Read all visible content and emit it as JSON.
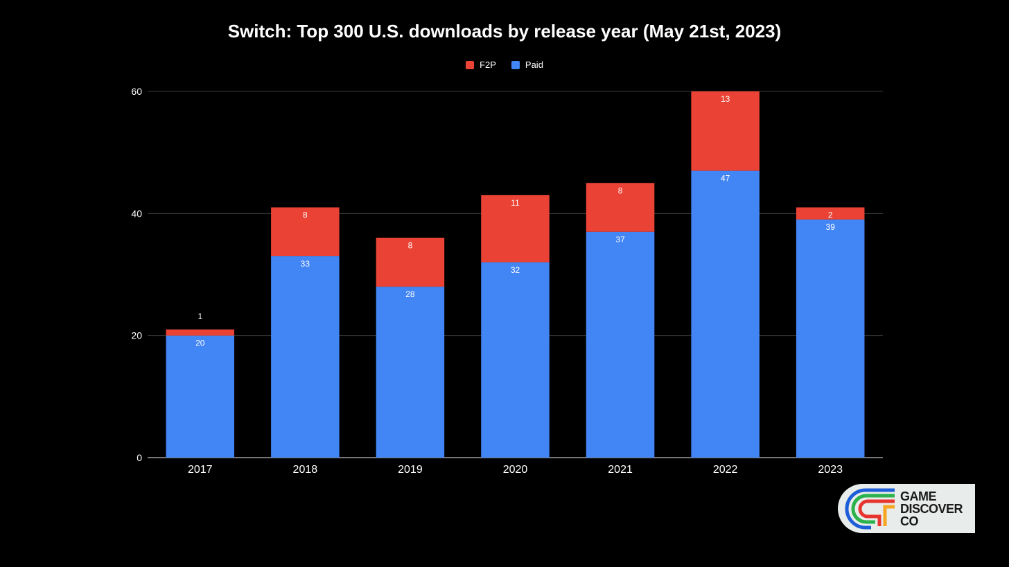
{
  "chart_data": {
    "type": "bar",
    "stacked": true,
    "title": "Switch: Top 300 U.S. downloads by release year (May 21st, 2023)",
    "categories": [
      "2017",
      "2018",
      "2019",
      "2020",
      "2021",
      "2022",
      "2023"
    ],
    "series": [
      {
        "name": "Paid",
        "color": "#4285f4",
        "values": [
          20,
          33,
          28,
          32,
          37,
          47,
          39
        ]
      },
      {
        "name": "F2P",
        "color": "#ea4335",
        "values": [
          1,
          8,
          8,
          11,
          8,
          13,
          2
        ]
      }
    ],
    "legend_order": [
      "F2P",
      "Paid"
    ],
    "legend_position": "top-center",
    "ylim": [
      0,
      60
    ],
    "yticks": [
      "0",
      "20",
      "40",
      "60"
    ],
    "grid": true,
    "xlabel": "",
    "ylabel": ""
  },
  "logo": {
    "lines": [
      "GAME",
      "DISCOVER",
      "CO"
    ],
    "colors": [
      "#1e5fd9",
      "#2bb24c",
      "#e8342f",
      "#f6a623"
    ]
  }
}
